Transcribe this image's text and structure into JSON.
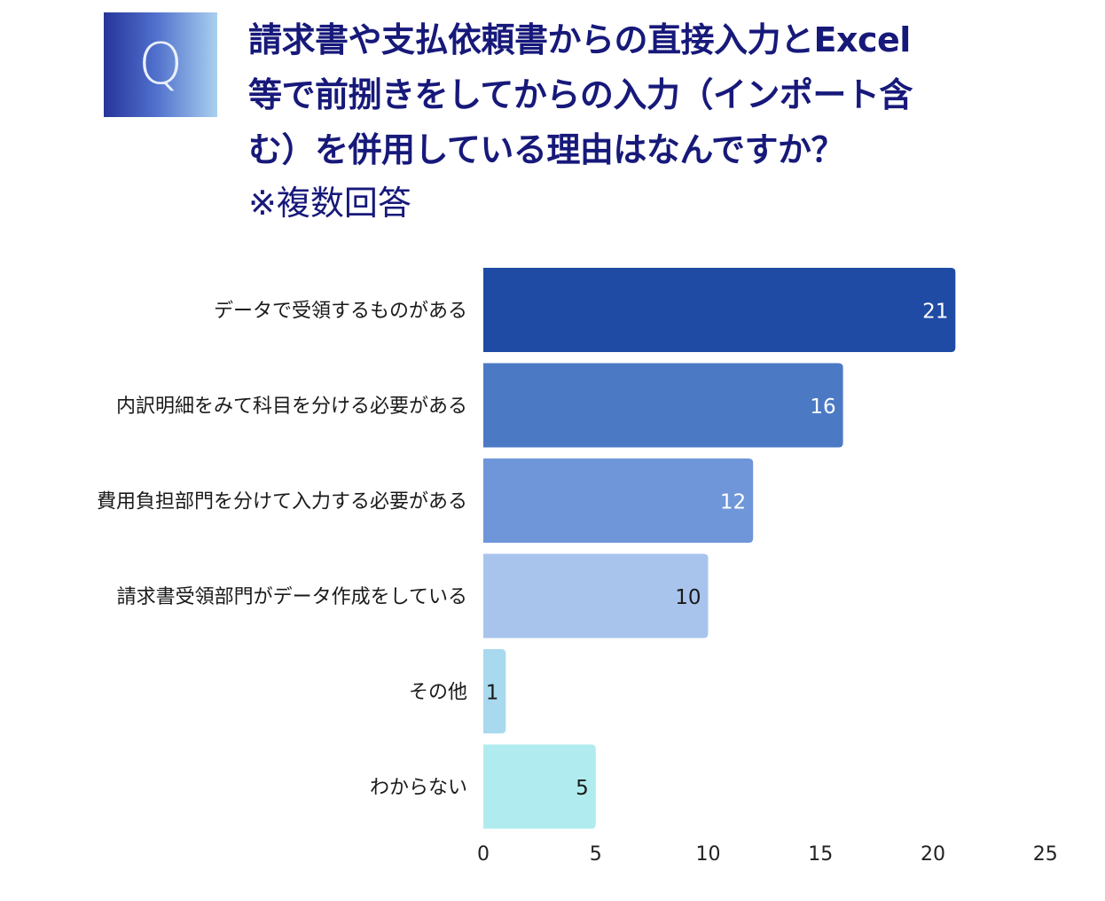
{
  "header": {
    "badge_letter": "Q",
    "title_lines": [
      "請求書や支払依頼書からの直接入力とExcel",
      "等で前捌きをしてからの入力（インポート含",
      "む）を併用している理由はなんですか？"
    ],
    "note": "※複数回答"
  },
  "chart_data": {
    "type": "bar",
    "orientation": "horizontal",
    "title": "請求書や支払依頼書からの直接入力とExcel等で前捌きをしてからの入力（インポート含む）を併用している理由はなんですか？",
    "subtitle": "※複数回答",
    "categories": [
      "データで受領するものがある",
      "内訳明細をみて科目を分ける必要がある",
      "費用負担部門を分けて入力する必要がある",
      "請求書受領部門がデータ作成をしている",
      "その他",
      "わからない"
    ],
    "values": [
      21,
      16,
      12,
      10,
      1,
      5
    ],
    "xlabel": "",
    "ylabel": "",
    "xlim": [
      0,
      25
    ],
    "xticks": [
      "0",
      "5",
      "10",
      "15",
      "20",
      "25"
    ],
    "grid": false,
    "legend": "none",
    "colors": [
      "#1f4ba5",
      "#4b79c4",
      "#6f96d8",
      "#a9c4ec",
      "#a9d9ef",
      "#b0ecef"
    ],
    "label_colors": [
      "#ffffff",
      "#ffffff",
      "#ffffff",
      "#1a1a1a",
      "#1a1a1a",
      "#1a1a1a"
    ]
  }
}
